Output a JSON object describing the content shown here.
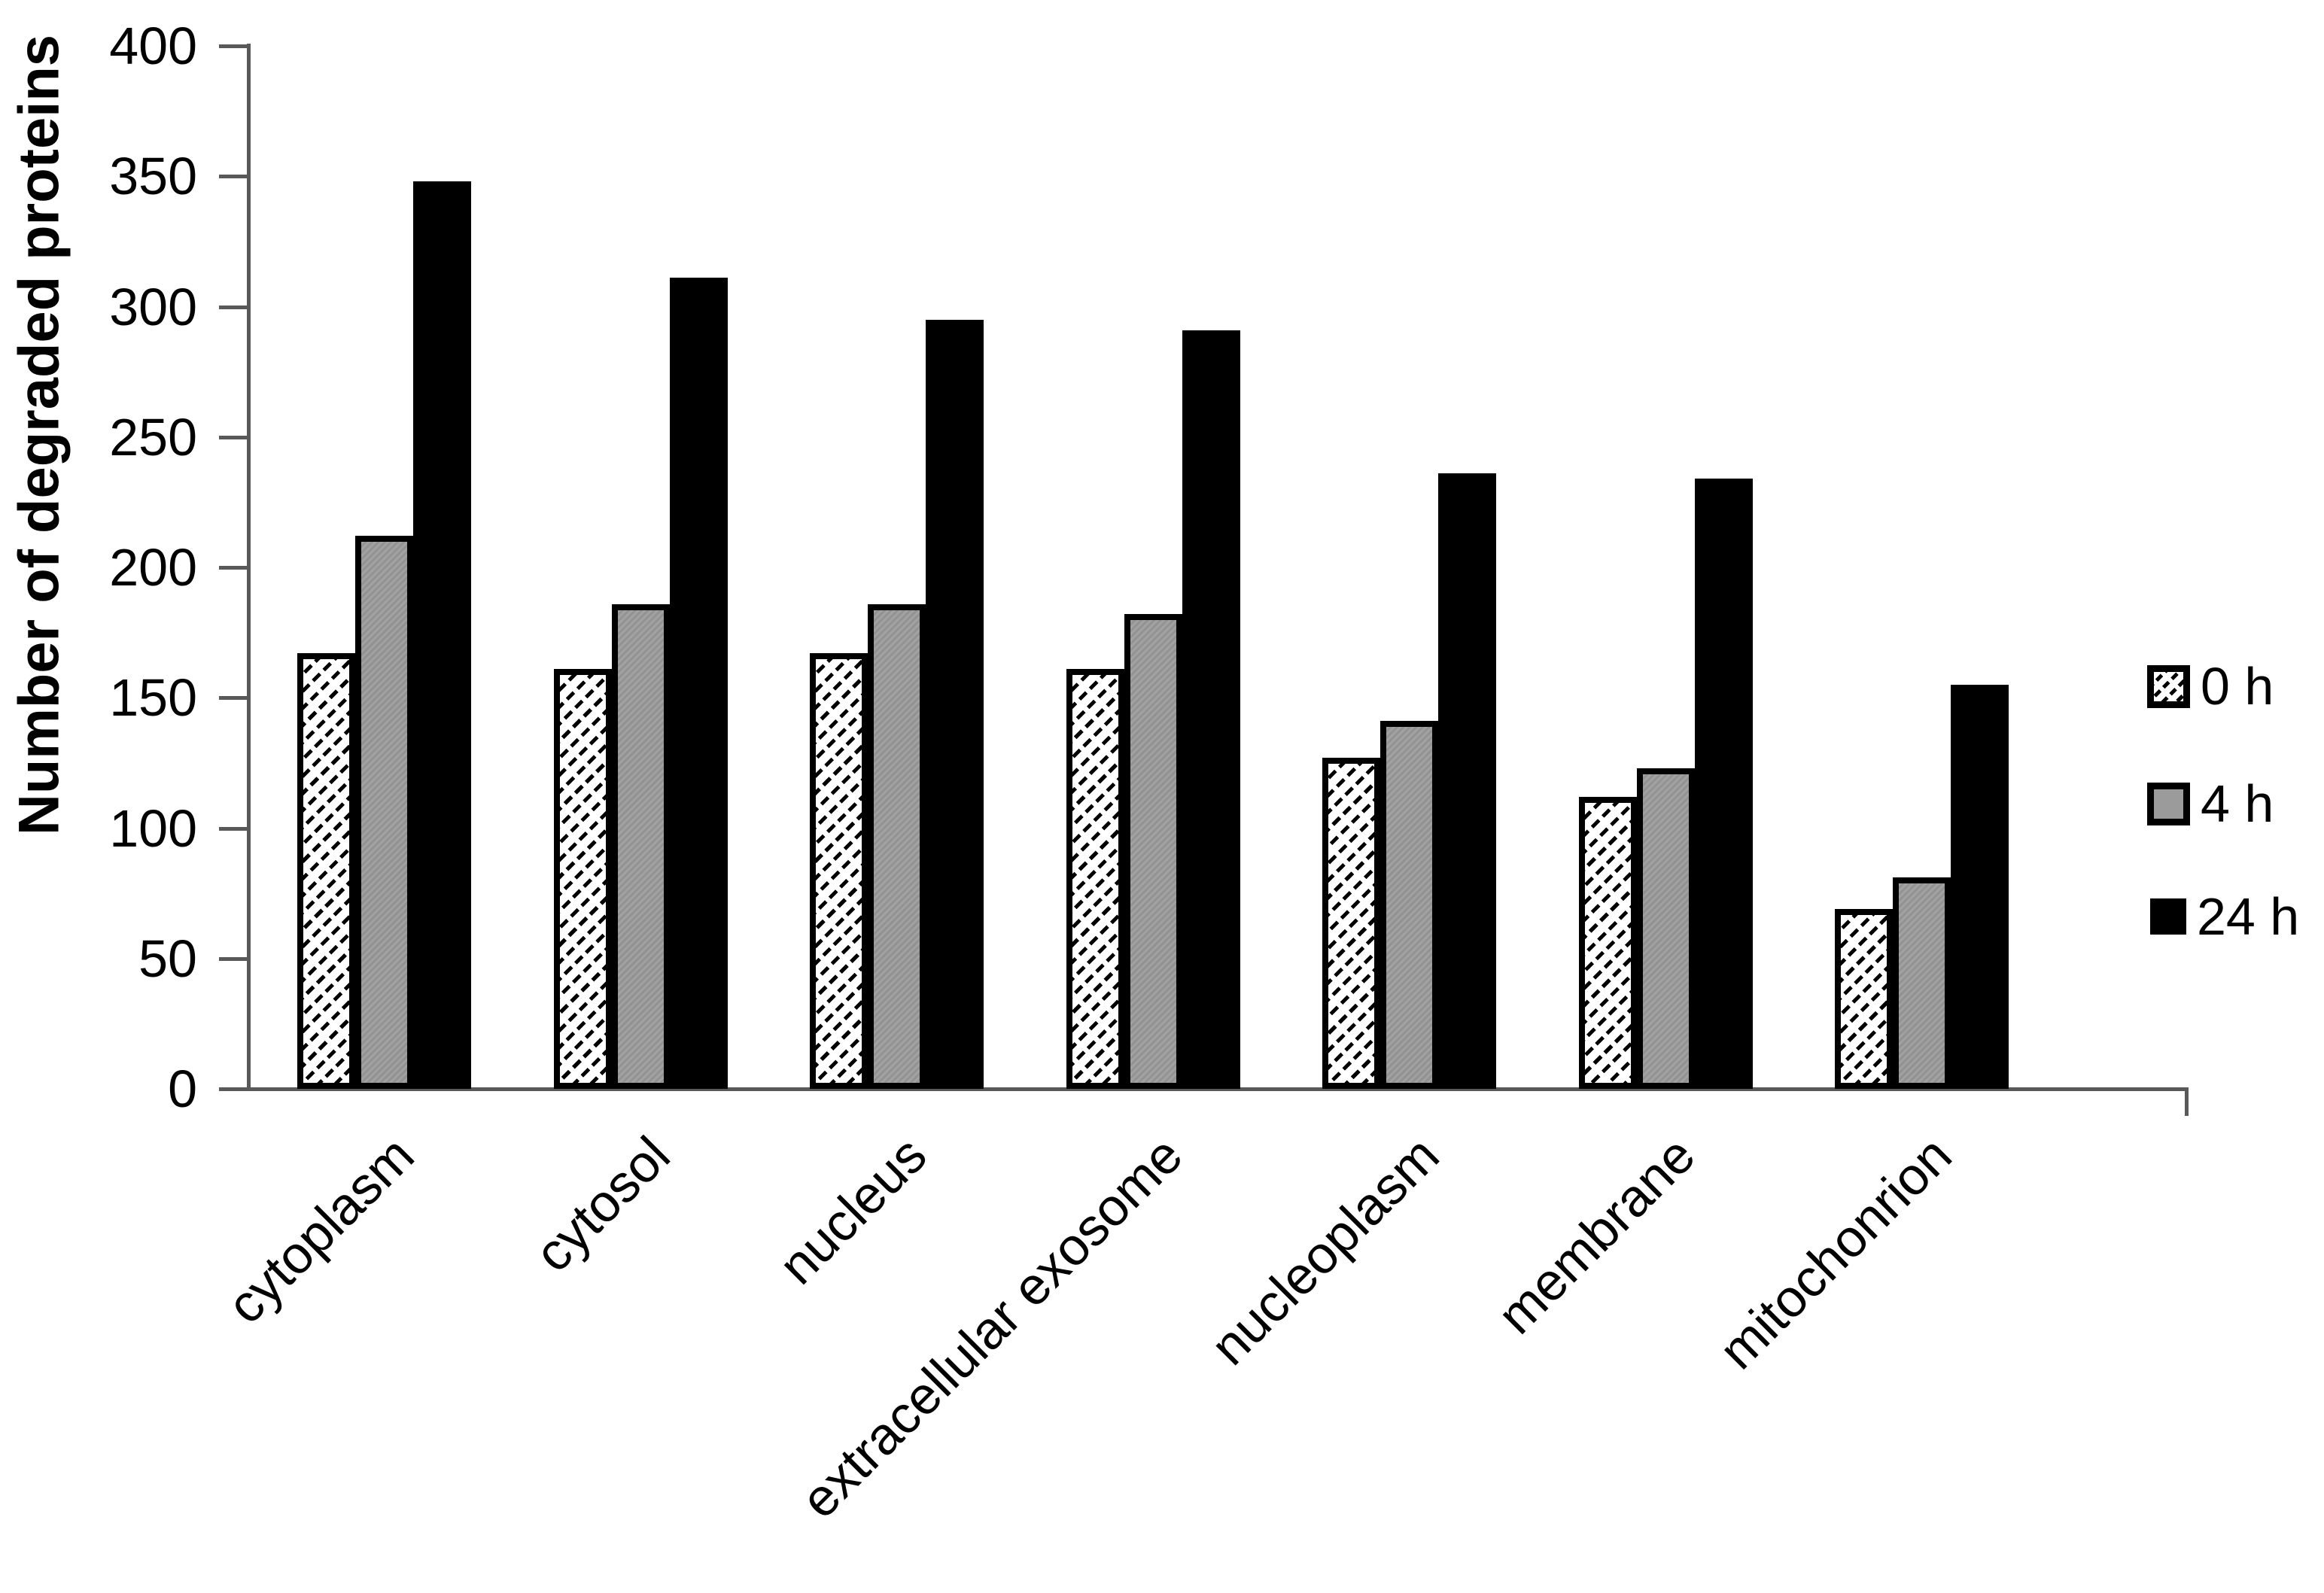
{
  "figure": {
    "description": "Grouped monochrome bar chart of degraded protein counts by cellular component at three time points"
  },
  "chart_data": {
    "type": "bar",
    "title": "",
    "xlabel": "",
    "ylabel": "Number of degraded proteins",
    "ylim": [
      0,
      400
    ],
    "yticks": [
      0,
      50,
      100,
      150,
      200,
      250,
      300,
      350,
      400
    ],
    "grid": false,
    "legend_position": "right",
    "categories": [
      "cytoplasm",
      "cytosol",
      "nucleus",
      "extracellular exosome",
      "nucleoplasm",
      "membrane",
      "mitochonrion"
    ],
    "series": [
      {
        "name": "0 h",
        "style": "hatched",
        "values": [
          167,
          161,
          167,
          161,
          127,
          112,
          69
        ]
      },
      {
        "name": "4 h",
        "style": "gray",
        "values": [
          212,
          186,
          186,
          182,
          141,
          123,
          81
        ]
      },
      {
        "name": "24 h",
        "style": "black",
        "values": [
          348,
          311,
          295,
          291,
          236,
          234,
          155
        ]
      }
    ]
  },
  "colors": {
    "axis": "#595959",
    "text": "#000000",
    "bar_gray": "#9b9b9b",
    "bar_black": "#000000",
    "background": "#ffffff"
  }
}
